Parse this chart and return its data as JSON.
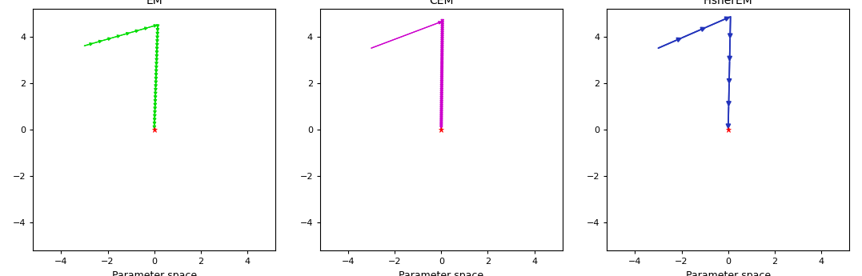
{
  "titles": [
    "EM",
    "CEM",
    "FisherEM"
  ],
  "xlabel": "Parameter space",
  "xlim": [
    -5.2,
    5.2
  ],
  "ylim": [
    -5.2,
    5.2
  ],
  "xticks": [
    -4,
    -2,
    0,
    2,
    4
  ],
  "yticks": [
    -4,
    -2,
    0,
    2,
    4
  ],
  "colors": [
    "#00DD00",
    "#CC00CC",
    "#2233BB"
  ],
  "end_color": "red",
  "em": {
    "start_x": -3.0,
    "start_y": 3.6,
    "corner_x": 0.15,
    "corner_y": 4.5,
    "n_horiz": 8,
    "n_vert": 28
  },
  "cem": {
    "start_x": -3.0,
    "start_y": 3.5,
    "corner_x": 0.05,
    "corner_y": 4.65,
    "n_vert": 55
  },
  "fisher": {
    "start_x": -3.0,
    "start_y": 3.5,
    "corner_x": 0.1,
    "corner_y": 4.85,
    "n_horiz": 3,
    "n_vert": 5
  },
  "fig_width": 10.77,
  "fig_height": 3.45,
  "dpi": 100
}
